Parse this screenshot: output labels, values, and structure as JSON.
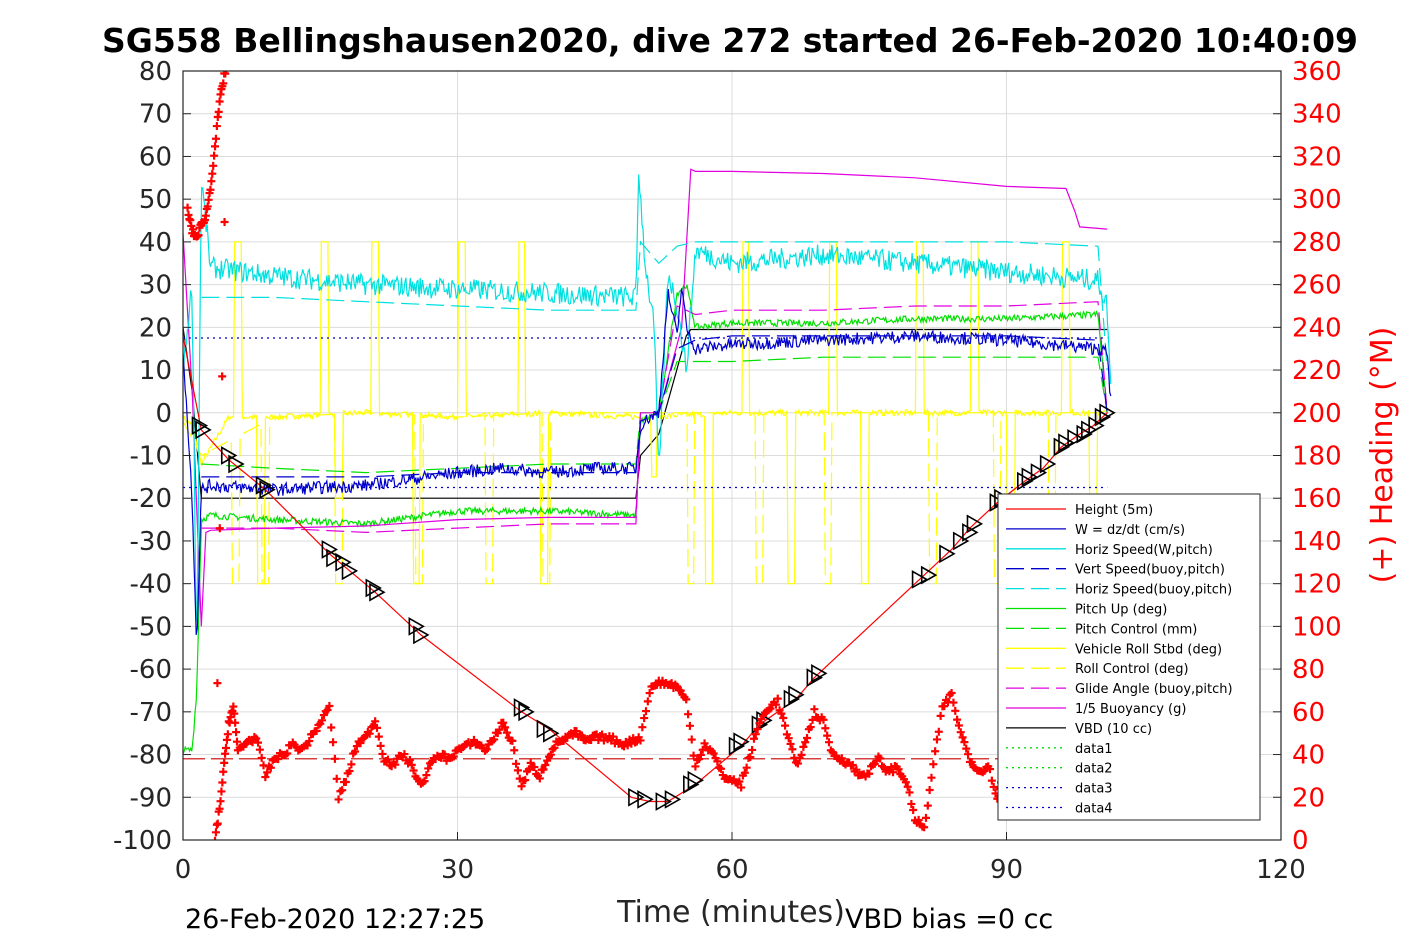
{
  "chart_data": {
    "type": "line",
    "title": "SG558 Bellingshausen2020, dive 272 started 26-Feb-2020 10:40:09",
    "xlabel": "Time (minutes)",
    "ylabel_right": "(+) Heading (°M)",
    "xlim": [
      0,
      120
    ],
    "ylim": [
      -100,
      80
    ],
    "ylim_right": [
      0,
      360
    ],
    "x_ticks": [
      "0",
      "30",
      "60",
      "90",
      "120"
    ],
    "y_ticks": [
      "80",
      "70",
      "60",
      "50",
      "40",
      "30",
      "20",
      "10",
      "0",
      "-10",
      "-20",
      "-30",
      "-40",
      "-50",
      "-60",
      "-70",
      "-80",
      "-90",
      "-100"
    ],
    "y_ticks_right": [
      "360",
      "340",
      "320",
      "300",
      "280",
      "260",
      "240",
      "220",
      "200",
      "180",
      "160",
      "140",
      "120",
      "100",
      "80",
      "60",
      "40",
      "20",
      "0"
    ],
    "grid": true,
    "legend_position": "bottom-right",
    "footer_left": "26-Feb-2020 12:27:25",
    "footer_right": "VBD bias =0 cc",
    "colors": {
      "red": "#ff0000",
      "blue": "#0000cc",
      "cyan": "#00e0e0",
      "green": "#00e000",
      "yellow": "#ffff00",
      "magenta": "#e000e0",
      "black": "#000000",
      "gray": "#cccccc"
    },
    "legend": [
      {
        "label": "Height (5m)",
        "color": "#ff0000",
        "dash": "solid"
      },
      {
        "label": "W = dz/dt (cm/s)",
        "color": "#0000cc",
        "dash": "solid"
      },
      {
        "label": "Horiz Speed(W,pitch)",
        "color": "#00e0e0",
        "dash": "solid"
      },
      {
        "label": "Vert Speed(buoy,pitch)",
        "color": "#0000cc",
        "dash": "dashed"
      },
      {
        "label": "Horiz Speed(buoy,pitch)",
        "color": "#00e0e0",
        "dash": "dashed"
      },
      {
        "label": "Pitch Up (deg)",
        "color": "#00e000",
        "dash": "solid"
      },
      {
        "label": "Pitch Control (mm)",
        "color": "#00e000",
        "dash": "dashed"
      },
      {
        "label": "Vehicle Roll Stbd (deg)",
        "color": "#ffff00",
        "dash": "solid"
      },
      {
        "label": "Roll Control (deg)",
        "color": "#ffff00",
        "dash": "dashed"
      },
      {
        "label": "Glide Angle (buoy,pitch)",
        "color": "#e000e0",
        "dash": "dashed"
      },
      {
        "label": "1/5 Buoyancy (g)",
        "color": "#e000e0",
        "dash": "solid"
      },
      {
        "label": "VBD (10 cc)",
        "color": "#000000",
        "dash": "solid"
      },
      {
        "label": "data1",
        "color": "#00e000",
        "dash": "dotted"
      },
      {
        "label": "data2",
        "color": "#00e000",
        "dash": "dotted"
      },
      {
        "label": "data3",
        "color": "#0000cc",
        "dash": "dotted"
      },
      {
        "label": "data4",
        "color": "#0000cc",
        "dash": "dotted"
      }
    ],
    "series": [
      {
        "name": "Height (5m)",
        "color": "#ff0000",
        "dash": "solid",
        "x": [
          0,
          2,
          5,
          9,
          16,
          21,
          26,
          37,
          40,
          49,
          51,
          53,
          56,
          61,
          63,
          67,
          69,
          81,
          84,
          86,
          89,
          92,
          94,
          96,
          98,
          99.5,
          101
        ],
        "y": [
          18,
          -4,
          -11,
          -18,
          -33,
          -42,
          -52,
          -70,
          -74,
          -90,
          -91,
          -91,
          -87,
          -78,
          -73,
          -67,
          -62,
          -38,
          -32,
          -27,
          -21,
          -16,
          -13,
          -8,
          -5,
          -3,
          0
        ]
      },
      {
        "name": "Targets",
        "color": "#000000",
        "dash": "markers",
        "x": [
          1.8,
          2.2,
          5.0,
          5.8,
          8.8,
          9.2,
          16.0,
          16.5,
          17.5,
          18.2,
          20.8,
          21.2,
          25.5,
          26.0,
          37.0,
          37.5,
          39.5,
          40.2,
          49.5,
          50.5,
          52.5,
          53.5,
          55.5,
          56.0,
          60.5,
          61.0,
          63.0,
          63.5,
          66.5,
          67.0,
          69.0,
          69.5,
          80.5,
          81.5,
          83.5,
          85.0,
          86.0,
          86.5,
          89.0,
          89.5,
          92.0,
          92.5,
          93.5,
          94.5,
          96.0,
          96.5,
          97.5,
          98.5,
          99.0,
          99.8,
          100.5,
          101.0
        ],
        "y": [
          -3,
          -4,
          -10,
          -12,
          -17,
          -18,
          -32,
          -34,
          -35,
          -37,
          -41,
          -42,
          -50,
          -52,
          -69,
          -70,
          -74,
          -75,
          -90,
          -90.5,
          -91,
          -90.5,
          -87,
          -86,
          -78,
          -77,
          -73,
          -72,
          -67,
          -66,
          -62,
          -61,
          -39,
          -38,
          -33,
          -30,
          -28,
          -26,
          -21,
          -20,
          -16,
          -15,
          -14,
          -12,
          -8,
          -7,
          -6,
          -5,
          -4,
          -3,
          -1,
          0
        ]
      },
      {
        "name": "W = dz/dt (cm/s)",
        "color": "#0000cc",
        "dash": "solid",
        "x": [
          0,
          1,
          1.5,
          2,
          3,
          10,
          20,
          30,
          35,
          40,
          45,
          49.5,
          50,
          51,
          52,
          53,
          54,
          54.5,
          55,
          56,
          60,
          70,
          80,
          90,
          100,
          101,
          101.5
        ],
        "y": [
          15,
          -20,
          -55,
          -18,
          -17,
          -18,
          -17,
          -14,
          -13,
          -14,
          -13,
          -13,
          -3,
          -1,
          0,
          28,
          18,
          30,
          20,
          15,
          16,
          17,
          18,
          17,
          15,
          14,
          0
        ],
        "noise": 1.5
      },
      {
        "name": "Horiz Speed(W,pitch)",
        "color": "#00e0e0",
        "dash": "solid",
        "x": [
          0,
          1,
          1.5,
          2,
          3,
          10,
          20,
          30,
          40,
          49.5,
          49.8,
          50.5,
          51.5,
          52,
          53,
          54,
          55,
          56,
          60,
          70,
          80,
          90,
          95,
          100,
          101,
          101.5
        ],
        "y": [
          10,
          30,
          -60,
          55,
          34,
          32,
          30,
          29,
          28,
          27,
          57,
          35,
          20,
          -15,
          33,
          25,
          10,
          38,
          35,
          37,
          35,
          33,
          32,
          31,
          25,
          0
        ],
        "noise": 2.5
      },
      {
        "name": "Vert Speed(buoy,pitch)",
        "color": "#0000cc",
        "dash": "dashed",
        "x": [
          2,
          10,
          20,
          30,
          40,
          49.5,
          50,
          52,
          54,
          56,
          60,
          70,
          80,
          90,
          100,
          101
        ],
        "y": [
          -15,
          -15,
          -15,
          -14,
          -14,
          -14,
          -2,
          0,
          15,
          17,
          18,
          18,
          18,
          18,
          17,
          0
        ]
      },
      {
        "name": "Horiz Speed(buoy,pitch)",
        "color": "#00e0e0",
        "dash": "dashed",
        "x": [
          2,
          10,
          20,
          30,
          40,
          49.5,
          50,
          52,
          54,
          56,
          60,
          70,
          80,
          90,
          100,
          101
        ],
        "y": [
          27,
          27,
          26,
          25,
          24,
          24,
          40,
          35,
          39,
          40,
          40,
          40,
          40,
          40,
          39,
          10
        ]
      },
      {
        "name": "Pitch Up (deg)",
        "color": "#00e000",
        "dash": "solid",
        "x": [
          0,
          1,
          1.5,
          2,
          3,
          10,
          20,
          30,
          40,
          49.5,
          50,
          52,
          54,
          55,
          56,
          60,
          70,
          80,
          90,
          100,
          101
        ],
        "y": [
          -79,
          -79,
          -65,
          -25,
          -24,
          -25,
          -26,
          -23,
          -23,
          -24,
          -2,
          0,
          28,
          30,
          20,
          21,
          21,
          22,
          22,
          23,
          0
        ],
        "noise": 0.8
      },
      {
        "name": "Pitch Control (mm)",
        "color": "#00e000",
        "dash": "dashed",
        "x": [
          2,
          10,
          20,
          30,
          40,
          49.5,
          50,
          52,
          54,
          56,
          60,
          70,
          80,
          90,
          100,
          101
        ],
        "y": [
          -12,
          -13,
          -14,
          -13,
          -12,
          -12,
          0,
          0,
          12,
          12,
          12,
          13,
          13,
          13,
          13,
          0
        ]
      },
      {
        "name": "Vehicle Roll Stbd (deg)",
        "color": "#ffff00",
        "dash": "solid",
        "x": [
          0,
          1,
          2,
          5,
          10,
          20,
          30,
          40,
          49.5,
          50,
          60,
          70,
          80,
          90,
          100,
          101
        ],
        "y": [
          -1,
          -3,
          -12,
          -1,
          -1,
          0,
          -1,
          0,
          -1,
          -1,
          0,
          0,
          0,
          0,
          0,
          0
        ],
        "noise": 0.7,
        "spikes": [
          [
            6,
            40,
            0.4
          ],
          [
            8.5,
            -40,
            0.4
          ],
          [
            15.5,
            40,
            0.4
          ],
          [
            17,
            -20,
            0.4
          ],
          [
            21,
            40,
            0.4
          ],
          [
            25.5,
            -40,
            0.4
          ],
          [
            30.5,
            40,
            0.4
          ],
          [
            37,
            40,
            0.4
          ],
          [
            39.5,
            -40,
            0.4
          ],
          [
            51.5,
            -15,
            0.3
          ],
          [
            57.5,
            -40,
            0.4
          ],
          [
            61.5,
            40,
            0.4
          ],
          [
            66.5,
            -40,
            0.4
          ],
          [
            71,
            40,
            0.4
          ],
          [
            74.5,
            -40,
            0.4
          ],
          [
            80.5,
            40,
            0.4
          ],
          [
            86.5,
            40,
            0.4
          ],
          [
            90.5,
            -40,
            0.4
          ],
          [
            96.5,
            40,
            0.4
          ],
          [
            99.5,
            -30,
            0.4
          ]
        ]
      },
      {
        "name": "Roll Control (deg)",
        "color": "#ffff00",
        "dash": "dashed",
        "x": [
          0,
          2,
          10,
          20,
          30,
          40,
          49.5,
          50,
          60,
          70,
          80,
          90,
          100,
          101
        ],
        "y": [
          -2,
          -10,
          -1,
          0,
          -1,
          0,
          0,
          0,
          0,
          0,
          0,
          0,
          0,
          0
        ],
        "spikes": [
          [
            5.8,
            -40,
            0.4
          ],
          [
            9,
            -40,
            0.4
          ],
          [
            17,
            -40,
            0.4
          ],
          [
            25.8,
            -40,
            0.4
          ],
          [
            33.5,
            -40,
            0.4
          ],
          [
            39.7,
            -40,
            0.4
          ],
          [
            55.5,
            -40,
            0.4
          ],
          [
            63,
            -40,
            0.4
          ],
          [
            70.5,
            -40,
            0.4
          ],
          [
            82,
            -40,
            0.4
          ],
          [
            89,
            -40,
            0.4
          ],
          [
            95,
            -40,
            0.4
          ]
        ]
      },
      {
        "name": "Glide Angle (buoy,pitch)",
        "color": "#e000e0",
        "dash": "dashed",
        "x": [
          2,
          10,
          20,
          30,
          40,
          49.5,
          50,
          52,
          54,
          56,
          60,
          70,
          80,
          90,
          100,
          101
        ],
        "y": [
          -27,
          -27,
          -28,
          -27,
          -26,
          -26,
          -2,
          0,
          25,
          23,
          24,
          24,
          25,
          25,
          26,
          0
        ]
      },
      {
        "name": "1/5 Buoyancy (g)",
        "color": "#e000e0",
        "dash": "solid",
        "x": [
          0,
          1,
          2,
          2.5,
          3,
          10,
          20,
          30,
          40,
          49.5,
          50,
          52,
          54.5,
          55.5,
          56,
          60,
          70,
          80,
          90,
          96.5,
          97.5,
          98,
          101
        ],
        "y": [
          42,
          5,
          -50,
          -28,
          -27.5,
          -27,
          -26.5,
          -25,
          -24.5,
          -24.5,
          0,
          0,
          20,
          57,
          56.5,
          56.5,
          56,
          55,
          53,
          52.5,
          47,
          43.5,
          43
        ]
      },
      {
        "name": "VBD (10 cc)",
        "color": "#000000",
        "dash": "solid",
        "x": [
          0,
          1,
          2,
          10,
          20,
          30,
          40,
          49.5,
          50,
          52,
          55,
          55.5,
          60,
          70,
          80,
          90,
          100,
          101
        ],
        "y": [
          20,
          5,
          -20,
          -20,
          -20,
          -20,
          -20,
          -20,
          -10,
          -5,
          18,
          19.5,
          19.5,
          19.5,
          19.5,
          19.5,
          19.5,
          19.5
        ]
      },
      {
        "name": "data3",
        "color": "#0000cc",
        "dash": "dotted",
        "x": [
          0,
          101
        ],
        "y": [
          17.5,
          17.5
        ]
      },
      {
        "name": "data4",
        "color": "#0000cc",
        "dash": "dotted",
        "x": [
          0,
          101
        ],
        "y": [
          -17.5,
          -17.5
        ]
      },
      {
        "name": "Reference",
        "color": "#cc0000",
        "dash": "longdash",
        "x": [
          0,
          101
        ],
        "y": [
          -81,
          -81
        ]
      }
    ],
    "heading": {
      "color": "#ff0000",
      "x": [
        0.5,
        1,
        1.5,
        2,
        2.5,
        3,
        3.5,
        4,
        4.5,
        4.8,
        3.5,
        4,
        4.5,
        5,
        5.5,
        6,
        7,
        8,
        9,
        10,
        11,
        12,
        13,
        14,
        15,
        16,
        17,
        18,
        19,
        20,
        21,
        22,
        23,
        24,
        25,
        26,
        27,
        28,
        29,
        30,
        31,
        32,
        33,
        34,
        35,
        36,
        37,
        38,
        39,
        40,
        41,
        42,
        43,
        44,
        45,
        46,
        47,
        48,
        49,
        50,
        51,
        52,
        53,
        54,
        55,
        56,
        57,
        58,
        59,
        60,
        61,
        62,
        63,
        64,
        65,
        66,
        67,
        68,
        69,
        70,
        71,
        72,
        73,
        74,
        75,
        76,
        77,
        78,
        79,
        80,
        81,
        82,
        83,
        84,
        85,
        86,
        87,
        88,
        89,
        90,
        91,
        92,
        93,
        94,
        95,
        96,
        97,
        98,
        99,
        100,
        101
      ],
      "y": [
        295,
        285,
        282,
        288,
        292,
        305,
        325,
        345,
        358,
        362,
        0,
        15,
        35,
        55,
        62,
        42,
        46,
        48,
        30,
        38,
        40,
        45,
        42,
        48,
        55,
        62,
        20,
        30,
        45,
        48,
        56,
        38,
        35,
        40,
        35,
        25,
        35,
        40,
        38,
        42,
        44,
        46,
        42,
        48,
        55,
        45,
        25,
        35,
        30,
        40,
        46,
        48,
        50,
        46,
        48,
        48,
        47,
        45,
        46,
        48,
        70,
        74,
        73,
        72,
        65,
        35,
        45,
        40,
        30,
        28,
        26,
        40,
        55,
        62,
        65,
        50,
        35,
        45,
        60,
        55,
        40,
        38,
        35,
        30,
        32,
        38,
        32,
        34,
        28,
        10,
        5,
        35,
        62,
        68,
        50,
        38,
        32,
        35,
        20,
        36,
        46,
        55,
        52,
        45,
        50,
        48,
        40,
        38,
        35,
        42,
        40
      ]
    }
  }
}
